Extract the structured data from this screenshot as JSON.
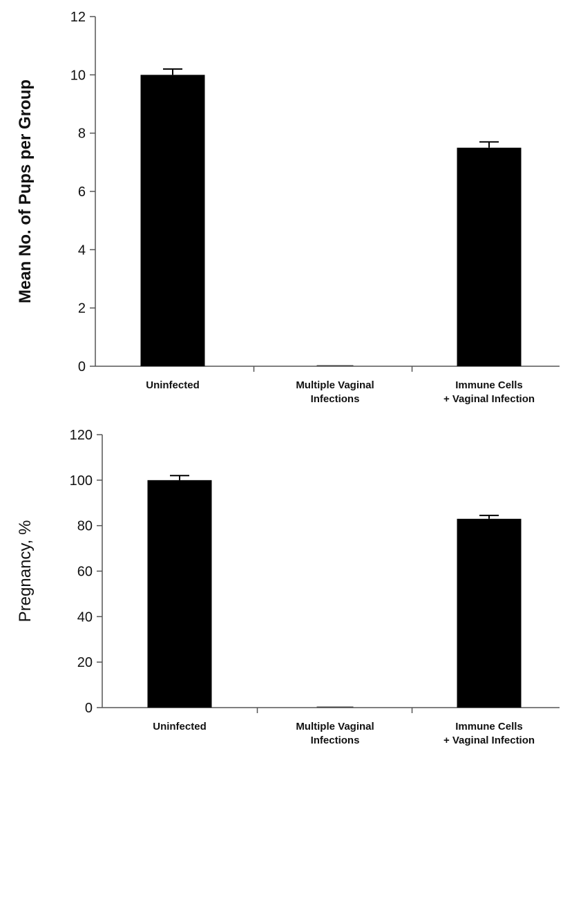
{
  "chart_data": [
    {
      "type": "bar",
      "title": "",
      "xlabel": "",
      "ylabel": "Mean No. of Pups per Group",
      "ylim": [
        0,
        12
      ],
      "yticks": [
        0,
        2,
        4,
        6,
        8,
        10,
        12
      ],
      "categories": [
        [
          "Uninfected"
        ],
        [
          "Multiple Vaginal",
          "Infections"
        ],
        [
          "Immune Cells",
          "+ Vaginal Infection"
        ]
      ],
      "values": [
        10,
        0,
        7.5
      ],
      "errors": [
        0.2,
        0,
        0.2
      ],
      "grid": false,
      "bar_color": "#000000"
    },
    {
      "type": "bar",
      "title": "",
      "xlabel": "",
      "ylabel": "Pregnancy, %",
      "ylim": [
        0,
        120
      ],
      "yticks": [
        0,
        20,
        40,
        60,
        80,
        100,
        120
      ],
      "categories": [
        [
          "Uninfected"
        ],
        [
          "Multiple Vaginal",
          "Infections"
        ],
        [
          "Immune Cells",
          "+ Vaginal Infection"
        ]
      ],
      "values": [
        100,
        0,
        83
      ],
      "errors": [
        2,
        0,
        1.5
      ],
      "grid": false,
      "bar_color": "#000000"
    }
  ]
}
